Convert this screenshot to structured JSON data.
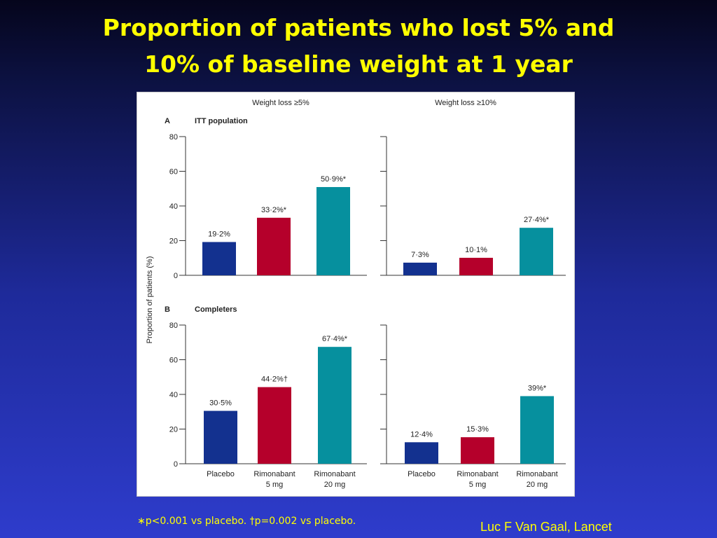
{
  "slide": {
    "title_line1": "Proportion of patients who lost 5% and",
    "title_line2": "10% of baseline weight at 1 year",
    "footnote": "∗p<0.001 vs placebo. †p=0.002 vs placebo.",
    "citation": "Luc F Van Gaal, Lancet"
  },
  "figure": {
    "column_headers": [
      "Weight loss ≥5%",
      "Weight loss ≥10%"
    ],
    "panel_a": {
      "letter": "A",
      "label": "ITT population"
    },
    "panel_b": {
      "letter": "B",
      "label": "Completers"
    },
    "ylabel": "Proportion of patients (%)"
  },
  "colors": {
    "placebo": "#13318f",
    "rimo5": "#b5002b",
    "rimo20": "#06909e"
  },
  "chart_data": [
    {
      "type": "bar",
      "panel": "A - ITT population",
      "title": "Weight loss ≥5%",
      "ylabel": "Proportion of patients (%)",
      "categories": [
        "Placebo",
        "Rimonabant 5 mg",
        "Rimonabant 20 mg"
      ],
      "values": [
        19.2,
        33.2,
        50.9
      ],
      "labels": [
        "19·2%",
        "33·2%*",
        "50·9%*"
      ],
      "ylim": [
        0,
        80
      ],
      "yticks": [
        0,
        20,
        40,
        60,
        80
      ],
      "show_ytick_labels": true,
      "show_category_labels": false
    },
    {
      "type": "bar",
      "panel": "A - ITT population",
      "title": "Weight loss ≥10%",
      "categories": [
        "Placebo",
        "Rimonabant 5 mg",
        "Rimonabant 20 mg"
      ],
      "values": [
        7.3,
        10.1,
        27.4
      ],
      "labels": [
        "7·3%",
        "10·1%",
        "27·4%*"
      ],
      "ylim": [
        0,
        80
      ],
      "yticks": [
        0,
        20,
        40,
        60,
        80
      ],
      "show_ytick_labels": false,
      "show_category_labels": false
    },
    {
      "type": "bar",
      "panel": "B - Completers",
      "title": "Weight loss ≥5%",
      "ylabel": "Proportion of patients (%)",
      "categories": [
        "Placebo",
        "Rimonabant 5 mg",
        "Rimonabant 20 mg"
      ],
      "values": [
        30.5,
        44.2,
        67.4
      ],
      "labels": [
        "30·5%",
        "44·2%†",
        "67·4%*"
      ],
      "ylim": [
        0,
        80
      ],
      "yticks": [
        0,
        20,
        40,
        60,
        80
      ],
      "show_ytick_labels": true,
      "show_category_labels": true
    },
    {
      "type": "bar",
      "panel": "B - Completers",
      "title": "Weight loss ≥10%",
      "categories": [
        "Placebo",
        "Rimonabant 5 mg",
        "Rimonabant 20 mg"
      ],
      "values": [
        12.4,
        15.3,
        39
      ],
      "labels": [
        "12·4%",
        "15·3%",
        "39%*"
      ],
      "ylim": [
        0,
        80
      ],
      "yticks": [
        0,
        20,
        40,
        60,
        80
      ],
      "show_ytick_labels": false,
      "show_category_labels": true
    }
  ],
  "category_label_lines": [
    [
      "Placebo"
    ],
    [
      "Rimonabant",
      "5 mg"
    ],
    [
      "Rimonabant",
      "20 mg"
    ]
  ]
}
